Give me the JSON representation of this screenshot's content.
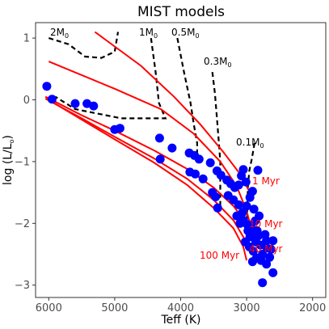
{
  "chart_data": {
    "type": "scatter",
    "title": "MIST models",
    "xlabel": "Teff (K)",
    "ylabel_main": "log (L/L",
    "ylabel_sub": "o",
    "ylabel_end": ")",
    "xlim": [
      6200,
      1800
    ],
    "ylim": [
      -3.2,
      1.25
    ],
    "x_reversed": true,
    "x_ticks": [
      6000,
      5000,
      4000,
      3000,
      2000
    ],
    "y_ticks": [
      -3,
      -2,
      -1,
      0,
      1
    ],
    "grid": false,
    "colors": {
      "points": "#0000ff",
      "isochrones": "#ff0000",
      "tracks": "#000000"
    },
    "points": [
      {
        "x": 6030,
        "y": 0.22
      },
      {
        "x": 5950,
        "y": 0.01
      },
      {
        "x": 5600,
        "y": -0.06
      },
      {
        "x": 5420,
        "y": -0.06
      },
      {
        "x": 5320,
        "y": -0.1
      },
      {
        "x": 5000,
        "y": -0.48
      },
      {
        "x": 4920,
        "y": -0.46
      },
      {
        "x": 4320,
        "y": -0.62
      },
      {
        "x": 4310,
        "y": -0.96
      },
      {
        "x": 4130,
        "y": -0.78
      },
      {
        "x": 3870,
        "y": -0.86
      },
      {
        "x": 3790,
        "y": -0.9
      },
      {
        "x": 3720,
        "y": -0.96
      },
      {
        "x": 3860,
        "y": -1.17
      },
      {
        "x": 3780,
        "y": -1.2
      },
      {
        "x": 3660,
        "y": -1.28
      },
      {
        "x": 3550,
        "y": -1.02
      },
      {
        "x": 3450,
        "y": -1.15
      },
      {
        "x": 3390,
        "y": -1.22
      },
      {
        "x": 3520,
        "y": -1.5
      },
      {
        "x": 3470,
        "y": -1.57
      },
      {
        "x": 3440,
        "y": -1.75
      },
      {
        "x": 3300,
        "y": -1.3
      },
      {
        "x": 3240,
        "y": -1.36
      },
      {
        "x": 3180,
        "y": -1.42
      },
      {
        "x": 3120,
        "y": -1.38
      },
      {
        "x": 3080,
        "y": -1.23
      },
      {
        "x": 3050,
        "y": -1.13
      },
      {
        "x": 3010,
        "y": -1.33
      },
      {
        "x": 3280,
        "y": -1.55
      },
      {
        "x": 3200,
        "y": -1.62
      },
      {
        "x": 3120,
        "y": -1.7
      },
      {
        "x": 3060,
        "y": -1.82
      },
      {
        "x": 3000,
        "y": -1.72
      },
      {
        "x": 3150,
        "y": -1.88
      },
      {
        "x": 3050,
        "y": -1.95
      },
      {
        "x": 2990,
        "y": -2.02
      },
      {
        "x": 2950,
        "y": -1.58
      },
      {
        "x": 2910,
        "y": -1.48
      },
      {
        "x": 2890,
        "y": -1.77
      },
      {
        "x": 2870,
        "y": -1.96
      },
      {
        "x": 2840,
        "y": -2.12
      },
      {
        "x": 2950,
        "y": -2.22
      },
      {
        "x": 3020,
        "y": -2.3
      },
      {
        "x": 2960,
        "y": -2.38
      },
      {
        "x": 2900,
        "y": -2.45
      },
      {
        "x": 2860,
        "y": -2.3
      },
      {
        "x": 2820,
        "y": -2.2
      },
      {
        "x": 2790,
        "y": -2.35
      },
      {
        "x": 2760,
        "y": -2.5
      },
      {
        "x": 2720,
        "y": -2.18
      },
      {
        "x": 2690,
        "y": -2.4
      },
      {
        "x": 2850,
        "y": -2.56
      },
      {
        "x": 2780,
        "y": -2.6
      },
      {
        "x": 2700,
        "y": -2.28
      },
      {
        "x": 2650,
        "y": -2.55
      },
      {
        "x": 2600,
        "y": -2.8
      },
      {
        "x": 2760,
        "y": -2.96
      },
      {
        "x": 2980,
        "y": -2.12
      },
      {
        "x": 2920,
        "y": -2.08
      },
      {
        "x": 2810,
        "y": -1.88
      },
      {
        "x": 2880,
        "y": -2.18
      },
      {
        "x": 3100,
        "y": -2.0
      },
      {
        "x": 2830,
        "y": -1.14
      },
      {
        "x": 2600,
        "y": -2.28
      },
      {
        "x": 2630,
        "y": -2.42
      },
      {
        "x": 2910,
        "y": -2.62
      },
      {
        "x": 2700,
        "y": -2.66
      }
    ],
    "isochrones": [
      {
        "name": "1 Myr",
        "points": [
          [
            5300,
            1.1
          ],
          [
            4600,
            0.55
          ],
          [
            4100,
            0.05
          ],
          [
            3700,
            -0.4
          ],
          [
            3350,
            -0.85
          ],
          [
            3100,
            -1.2
          ],
          [
            2950,
            -1.5
          ],
          [
            2900,
            -1.58
          ]
        ]
      },
      {
        "name": "",
        "points": [
          [
            6000,
            0.62
          ],
          [
            5000,
            0.18
          ],
          [
            4300,
            -0.15
          ],
          [
            3800,
            -0.55
          ],
          [
            3400,
            -1.0
          ],
          [
            3150,
            -1.4
          ],
          [
            3000,
            -1.8
          ],
          [
            2950,
            -2.0
          ]
        ]
      },
      {
        "name": "10 Myr",
        "points": [
          [
            6050,
            0.05
          ],
          [
            5500,
            -0.25
          ],
          [
            5000,
            -0.5
          ],
          [
            4400,
            -0.82
          ],
          [
            3900,
            -1.12
          ],
          [
            3500,
            -1.42
          ],
          [
            3200,
            -1.72
          ],
          [
            3000,
            -2.0
          ],
          [
            2950,
            -2.12
          ]
        ]
      },
      {
        "name": "40 Myr",
        "points": [
          [
            6050,
            0.02
          ],
          [
            5500,
            -0.3
          ],
          [
            5000,
            -0.6
          ],
          [
            4400,
            -0.95
          ],
          [
            3900,
            -1.28
          ],
          [
            3500,
            -1.62
          ],
          [
            3200,
            -1.95
          ],
          [
            3050,
            -2.22
          ],
          [
            2980,
            -2.4
          ]
        ]
      },
      {
        "name": "100 Myr",
        "points": [
          [
            6000,
            0.0
          ],
          [
            5500,
            -0.32
          ],
          [
            5000,
            -0.64
          ],
          [
            4400,
            -1.02
          ],
          [
            3900,
            -1.38
          ],
          [
            3500,
            -1.75
          ],
          [
            3200,
            -2.08
          ],
          [
            3050,
            -2.38
          ],
          [
            3000,
            -2.6
          ]
        ]
      }
    ],
    "tracks": [
      {
        "mass_value": "2",
        "points": [
          [
            6000,
            1.0
          ],
          [
            5700,
            0.9
          ],
          [
            5450,
            0.7
          ],
          [
            5200,
            0.68
          ],
          [
            5000,
            0.78
          ],
          [
            4950,
            1.1
          ]
        ]
      },
      {
        "mass_value": "1",
        "points": [
          [
            4450,
            1.0
          ],
          [
            4380,
            0.45
          ],
          [
            4330,
            -0.05
          ],
          [
            4230,
            -0.3
          ],
          [
            4900,
            -0.3
          ],
          [
            5600,
            -0.15
          ],
          [
            5900,
            0.05
          ]
        ]
      },
      {
        "mass_value": "0.5",
        "points": [
          [
            4050,
            1.0
          ],
          [
            3950,
            0.45
          ],
          [
            3850,
            -0.05
          ],
          [
            3800,
            -0.4
          ],
          [
            3750,
            -0.7
          ],
          [
            3750,
            -1.0
          ]
        ]
      },
      {
        "mass_value": "0.3",
        "points": [
          [
            3520,
            0.45
          ],
          [
            3480,
            0.1
          ],
          [
            3450,
            -0.3
          ],
          [
            3420,
            -0.7
          ],
          [
            3400,
            -1.0
          ],
          [
            3400,
            -1.8
          ]
        ]
      },
      {
        "mass_value": "0.1",
        "points": [
          [
            2880,
            -0.7
          ],
          [
            2920,
            -0.95
          ],
          [
            2960,
            -1.15
          ],
          [
            2980,
            -1.4
          ],
          [
            2990,
            -1.8
          ],
          [
            3000,
            -2.2
          ]
        ]
      }
    ],
    "track_labels": [
      {
        "mass": "2",
        "unit": "M",
        "sub": "0"
      },
      {
        "mass": "1",
        "unit": "M",
        "sub": "0"
      },
      {
        "mass": "0.5",
        "unit": "M",
        "sub": "0"
      },
      {
        "mass": "0.3",
        "unit": "M",
        "sub": "0"
      },
      {
        "mass": "0.1",
        "unit": "M",
        "sub": "0"
      }
    ],
    "isochrone_labels": [
      "1 Myr",
      "10 Myr",
      "40 Myr",
      "100 Myr"
    ]
  }
}
